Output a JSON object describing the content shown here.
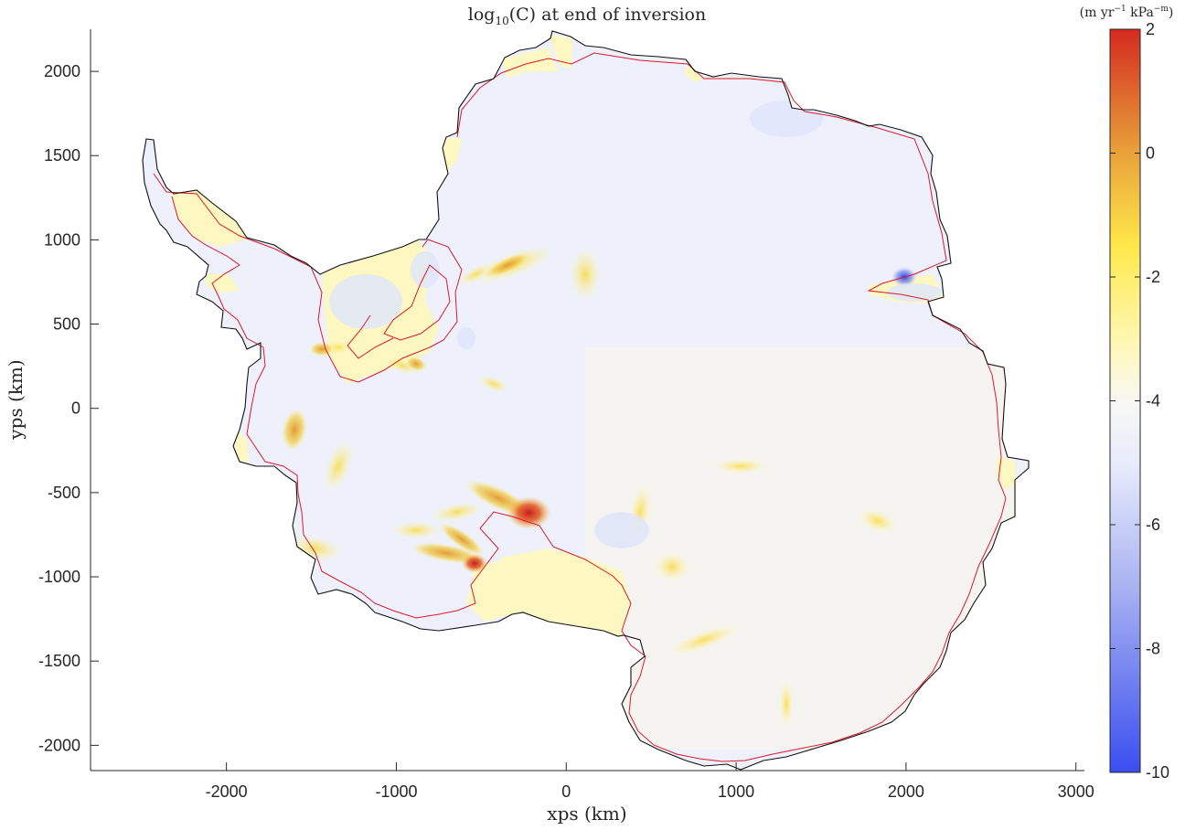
{
  "chart_data": {
    "type": "heatmap",
    "title": "log10(C) at end of inversion",
    "title_parts": {
      "pre": "log",
      "sub": "10",
      "post": "(C) at end of inversion"
    },
    "xlabel": "xps (km)",
    "ylabel": "yps (km)",
    "xlim": [
      -2800,
      3050
    ],
    "ylim": [
      -2150,
      2250
    ],
    "x_ticks": [
      -2000,
      -1000,
      0,
      1000,
      2000,
      3000
    ],
    "y_ticks": [
      -2000,
      -1500,
      -1000,
      -500,
      0,
      500,
      1000,
      1500,
      2000
    ],
    "x_tick_labels": [
      "-2000",
      "-1000",
      "0",
      "1000",
      "2000",
      "3000"
    ],
    "y_tick_labels": [
      "-2000",
      "-1500",
      "-1000",
      "-500",
      "0",
      "500",
      "1000",
      "1500",
      "2000"
    ],
    "colorbar": {
      "label": "(m yr-1 kPa-m)",
      "label_parts": {
        "pre": "(m yr",
        "sup1": "−1",
        "mid": " kPa",
        "sup2": "−m",
        "post": ")"
      },
      "lim": [
        -10,
        2
      ],
      "ticks": [
        2,
        0,
        -2,
        -4,
        -6,
        -8,
        -10
      ],
      "tick_labels": [
        "2",
        "0",
        "-2",
        "-4",
        "-6",
        "-8",
        "-10"
      ],
      "colormap": [
        {
          "value": -10,
          "color": "#3a4ef0"
        },
        {
          "value": -7,
          "color": "#a9b3f2"
        },
        {
          "value": -5,
          "color": "#e8ecfb"
        },
        {
          "value": -4,
          "color": "#f8f8f4"
        },
        {
          "value": -3,
          "color": "#fff7b0"
        },
        {
          "value": -1.5,
          "color": "#ffe84a"
        },
        {
          "value": 0,
          "color": "#e9a23a"
        },
        {
          "value": 2,
          "color": "#d42a1f"
        }
      ]
    },
    "colors": {
      "coastline": "#111111",
      "grounding_line": "#e0182b",
      "ice_sheet_base": "#eef1fb",
      "ice_shelf": "#fdf8c2"
    },
    "features": [
      {
        "name": "grounded ice sheet",
        "log10C": -4.6
      },
      {
        "name": "ice shelves",
        "log10C": -3.0
      },
      {
        "name": "Siple Coast ice streams",
        "x": -220,
        "y": -620,
        "log10C": 1.8
      },
      {
        "name": "ice stream tributary",
        "x": -540,
        "y": -920,
        "log10C": 0.6
      },
      {
        "name": "Amery low",
        "x": 1990,
        "y": 780,
        "log10C": -9.6
      }
    ]
  }
}
